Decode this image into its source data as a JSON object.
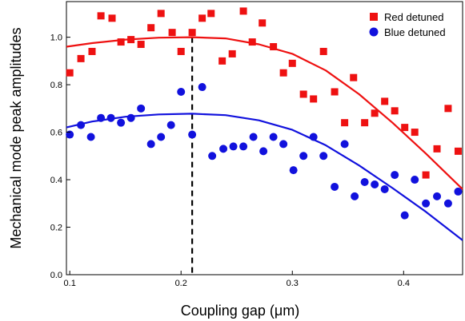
{
  "chart_data": {
    "type": "scatter",
    "xlabel": "Coupling gap (μm)",
    "ylabel": "Mechanical mode peak amplitudes",
    "xlim": [
      0.097,
      0.453
    ],
    "ylim": [
      0.0,
      1.15
    ],
    "x_ticks": [
      {
        "value": 0.1,
        "label": "0.1"
      },
      {
        "value": 0.2,
        "label": "0.2"
      },
      {
        "value": 0.3,
        "label": "0.3"
      },
      {
        "value": 0.4,
        "label": "0.4"
      }
    ],
    "y_ticks": [
      {
        "value": 0.0,
        "label": "0.0"
      },
      {
        "value": 0.2,
        "label": "0.2"
      },
      {
        "value": 0.4,
        "label": "0.4"
      },
      {
        "value": 0.6,
        "label": "0.6"
      },
      {
        "value": 0.8,
        "label": "0.8"
      },
      {
        "value": 1.0,
        "label": "1.0"
      }
    ],
    "grid": false,
    "legend_position": "top-right",
    "vertical_line": {
      "x": 0.21,
      "style": "dashed",
      "color": "#000000"
    },
    "series": [
      {
        "name": "Red detuned",
        "color": "#ee1111",
        "marker": "square",
        "points": [
          [
            0.1,
            0.85
          ],
          [
            0.11,
            0.91
          ],
          [
            0.12,
            0.94
          ],
          [
            0.128,
            1.09
          ],
          [
            0.138,
            1.08
          ],
          [
            0.146,
            0.98
          ],
          [
            0.155,
            0.99
          ],
          [
            0.164,
            0.97
          ],
          [
            0.173,
            1.04
          ],
          [
            0.182,
            1.1
          ],
          [
            0.192,
            1.02
          ],
          [
            0.2,
            0.94
          ],
          [
            0.21,
            1.02
          ],
          [
            0.219,
            1.08
          ],
          [
            0.227,
            1.1
          ],
          [
            0.237,
            0.9
          ],
          [
            0.246,
            0.93
          ],
          [
            0.256,
            1.11
          ],
          [
            0.264,
            0.98
          ],
          [
            0.273,
            1.06
          ],
          [
            0.283,
            0.96
          ],
          [
            0.292,
            0.85
          ],
          [
            0.3,
            0.89
          ],
          [
            0.31,
            0.76
          ],
          [
            0.319,
            0.74
          ],
          [
            0.328,
            0.94
          ],
          [
            0.338,
            0.77
          ],
          [
            0.347,
            0.64
          ],
          [
            0.355,
            0.83
          ],
          [
            0.365,
            0.64
          ],
          [
            0.374,
            0.68
          ],
          [
            0.383,
            0.73
          ],
          [
            0.392,
            0.69
          ],
          [
            0.401,
            0.62
          ],
          [
            0.41,
            0.6
          ],
          [
            0.42,
            0.42
          ],
          [
            0.43,
            0.53
          ],
          [
            0.44,
            0.7
          ],
          [
            0.449,
            0.52
          ]
        ],
        "fit": [
          [
            0.097,
            0.96
          ],
          [
            0.12,
            0.975
          ],
          [
            0.15,
            0.99
          ],
          [
            0.18,
            0.998
          ],
          [
            0.21,
            1.0
          ],
          [
            0.24,
            0.995
          ],
          [
            0.27,
            0.97
          ],
          [
            0.3,
            0.93
          ],
          [
            0.33,
            0.86
          ],
          [
            0.36,
            0.76
          ],
          [
            0.39,
            0.64
          ],
          [
            0.42,
            0.51
          ],
          [
            0.453,
            0.36
          ]
        ]
      },
      {
        "name": "Blue detuned",
        "color": "#1111dd",
        "marker": "circle",
        "points": [
          [
            0.1,
            0.59
          ],
          [
            0.11,
            0.63
          ],
          [
            0.119,
            0.58
          ],
          [
            0.128,
            0.66
          ],
          [
            0.137,
            0.66
          ],
          [
            0.146,
            0.64
          ],
          [
            0.155,
            0.66
          ],
          [
            0.164,
            0.7
          ],
          [
            0.173,
            0.55
          ],
          [
            0.182,
            0.58
          ],
          [
            0.191,
            0.63
          ],
          [
            0.2,
            0.77
          ],
          [
            0.21,
            0.59
          ],
          [
            0.219,
            0.79
          ],
          [
            0.228,
            0.5
          ],
          [
            0.238,
            0.53
          ],
          [
            0.247,
            0.54
          ],
          [
            0.256,
            0.54
          ],
          [
            0.265,
            0.58
          ],
          [
            0.274,
            0.52
          ],
          [
            0.283,
            0.58
          ],
          [
            0.292,
            0.55
          ],
          [
            0.301,
            0.44
          ],
          [
            0.31,
            0.5
          ],
          [
            0.319,
            0.58
          ],
          [
            0.328,
            0.5
          ],
          [
            0.338,
            0.37
          ],
          [
            0.347,
            0.55
          ],
          [
            0.356,
            0.33
          ],
          [
            0.365,
            0.39
          ],
          [
            0.374,
            0.38
          ],
          [
            0.383,
            0.36
          ],
          [
            0.392,
            0.42
          ],
          [
            0.401,
            0.25
          ],
          [
            0.41,
            0.4
          ],
          [
            0.42,
            0.3
          ],
          [
            0.43,
            0.33
          ],
          [
            0.44,
            0.3
          ],
          [
            0.449,
            0.35
          ]
        ],
        "fit": [
          [
            0.097,
            0.62
          ],
          [
            0.12,
            0.645
          ],
          [
            0.15,
            0.665
          ],
          [
            0.18,
            0.675
          ],
          [
            0.21,
            0.678
          ],
          [
            0.24,
            0.672
          ],
          [
            0.27,
            0.65
          ],
          [
            0.3,
            0.61
          ],
          [
            0.33,
            0.545
          ],
          [
            0.36,
            0.46
          ],
          [
            0.39,
            0.365
          ],
          [
            0.42,
            0.265
          ],
          [
            0.453,
            0.145
          ]
        ]
      }
    ]
  }
}
